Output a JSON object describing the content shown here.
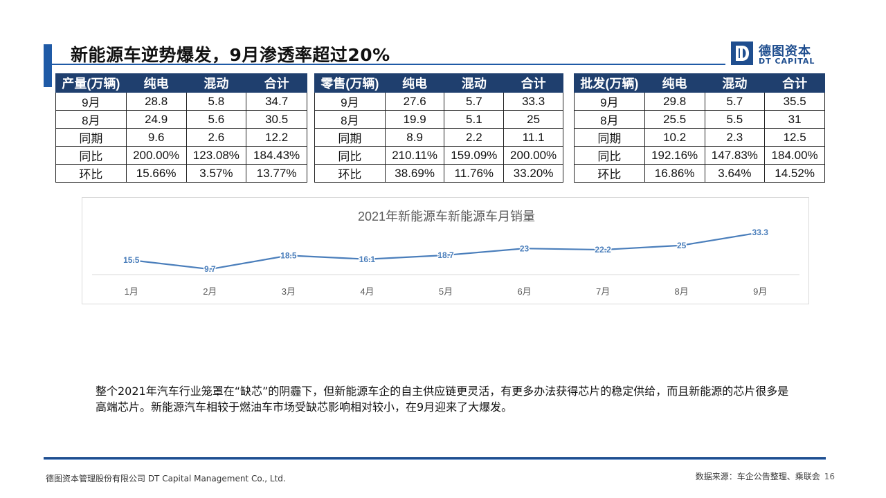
{
  "title": "新能源车逆势爆发，9月渗透率超过20%",
  "logo": {
    "cn": "德图资本",
    "en": "DT CAPITAL"
  },
  "tables": [
    {
      "headers": [
        "产量(万辆)",
        "纯电",
        "混动",
        "合计"
      ],
      "rows": [
        [
          "9月",
          "28.8",
          "5.8",
          "34.7"
        ],
        [
          "8月",
          "24.9",
          "5.6",
          "30.5"
        ],
        [
          "同期",
          "9.6",
          "2.6",
          "12.2"
        ],
        [
          "同比",
          "200.00%",
          "123.08%",
          "184.43%"
        ],
        [
          "环比",
          "15.66%",
          "3.57%",
          "13.77%"
        ]
      ]
    },
    {
      "headers": [
        "零售(万辆)",
        "纯电",
        "混动",
        "合计"
      ],
      "rows": [
        [
          "9月",
          "27.6",
          "5.7",
          "33.3"
        ],
        [
          "8月",
          "19.9",
          "5.1",
          "25"
        ],
        [
          "同期",
          "8.9",
          "2.2",
          "11.1"
        ],
        [
          "同比",
          "210.11%",
          "159.09%",
          "200.00%"
        ],
        [
          "环比",
          "38.69%",
          "11.76%",
          "33.20%"
        ]
      ]
    },
    {
      "headers": [
        "批发(万辆)",
        "纯电",
        "混动",
        "合计"
      ],
      "rows": [
        [
          "9月",
          "29.8",
          "5.7",
          "35.5"
        ],
        [
          "8月",
          "25.5",
          "5.5",
          "31"
        ],
        [
          "同期",
          "10.2",
          "2.3",
          "12.5"
        ],
        [
          "同比",
          "192.16%",
          "147.83%",
          "184.00%"
        ],
        [
          "环比",
          "16.86%",
          "3.64%",
          "14.52%"
        ]
      ]
    }
  ],
  "chart_data": {
    "type": "line",
    "title": "2021年新能源车新能源车月销量",
    "categories": [
      "1月",
      "2月",
      "3月",
      "4月",
      "5月",
      "6月",
      "7月",
      "8月",
      "9月"
    ],
    "values": [
      15.5,
      9.7,
      18.5,
      16.1,
      18.7,
      23,
      22.2,
      25,
      33.3
    ],
    "xlabel": "",
    "ylabel": "",
    "ylim": [
      0,
      40
    ],
    "grid": false,
    "legend": "none",
    "line_color": "#4a7ebb"
  },
  "body_text": "整个2021年汽车行业笼罩在“缺芯”的阴霾下，但新能源车企的自主供应链更灵活，有更多办法获得芯片的稳定供给，而且新能源的芯片很多是高端芯片。新能源汽车相较于燃油车市场受缺芯影响相对较小，在9月迎来了大爆发。",
  "footer": {
    "company": "德图资本管理股份有限公司 DT Capital Management Co., Ltd.",
    "source": "数据来源：车企公告整理、乘联会",
    "page": "16"
  },
  "colors": {
    "accent": "#1f5aa6",
    "table_header": "#1f3f6e",
    "line": "#4a7ebb"
  }
}
